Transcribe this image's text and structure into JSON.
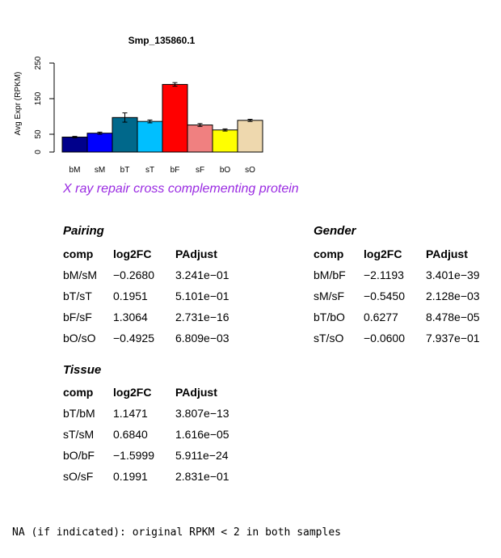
{
  "chart_data": {
    "type": "bar",
    "title": "Smp_135860.1",
    "ylabel": "Avg Expr (RPKM)",
    "xlabel": "",
    "categories": [
      "bM",
      "sM",
      "bT",
      "sT",
      "bF",
      "sF",
      "bO",
      "sO"
    ],
    "values": [
      42,
      53,
      97,
      86,
      190,
      76,
      62,
      89
    ],
    "errors": [
      2,
      3,
      13,
      4,
      5,
      4,
      3,
      3
    ],
    "colors": [
      "#00008b",
      "#0000ff",
      "#00688b",
      "#00bfff",
      "#ff0000",
      "#f08080",
      "#ffff00",
      "#eed8ae"
    ],
    "ylim": [
      0,
      250
    ],
    "yticks": [
      0,
      50,
      150,
      250
    ]
  },
  "subtitle": "X ray repair cross complementing protein",
  "pairing": {
    "title": "Pairing",
    "headers": [
      "comp",
      "log2FC",
      "PAdjust"
    ],
    "rows": [
      [
        "bM/sM",
        "−0.2680",
        "3.241e−01"
      ],
      [
        "bT/sT",
        "0.1951",
        "5.101e−01"
      ],
      [
        "bF/sF",
        "1.3064",
        "2.731e−16"
      ],
      [
        "bO/sO",
        "−0.4925",
        "6.809e−03"
      ]
    ]
  },
  "gender": {
    "title": "Gender",
    "headers": [
      "comp",
      "log2FC",
      "PAdjust"
    ],
    "rows": [
      [
        "bM/bF",
        "−2.1193",
        "3.401e−39"
      ],
      [
        "sM/sF",
        "−0.5450",
        "2.128e−03"
      ],
      [
        "bT/bO",
        "0.6277",
        "8.478e−05"
      ],
      [
        "sT/sO",
        "−0.0600",
        "7.937e−01"
      ]
    ]
  },
  "tissue": {
    "title": "Tissue",
    "headers": [
      "comp",
      "log2FC",
      "PAdjust"
    ],
    "rows": [
      [
        "bT/bM",
        "1.1471",
        "3.807e−13"
      ],
      [
        "sT/sM",
        "0.6840",
        "1.616e−05"
      ],
      [
        "bO/bF",
        "−1.5999",
        "5.911e−24"
      ],
      [
        "sO/sF",
        "0.1991",
        "2.831e−01"
      ]
    ]
  },
  "footnote": "NA (if indicated): original RPKM < 2 in both samples"
}
